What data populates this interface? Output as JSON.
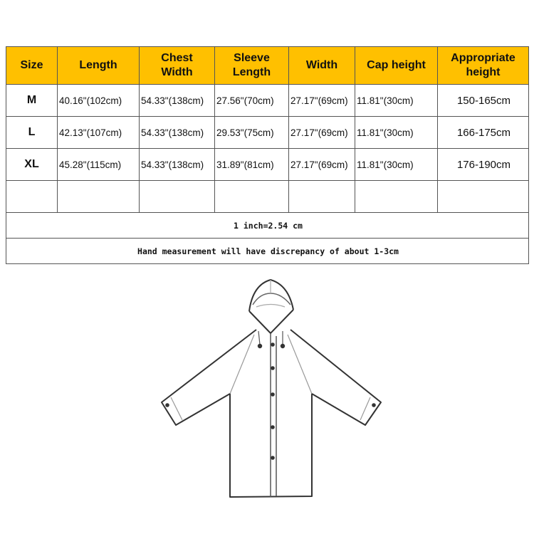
{
  "colors": {
    "header_bg": "#FFC000"
  },
  "table": {
    "headers": [
      "Size",
      "Length",
      "Chest Width",
      "Sleeve Length",
      "Width",
      "Cap height",
      "Appropriate height"
    ],
    "rows": [
      [
        "M",
        "40.16\"(102cm)",
        "54.33\"(138cm)",
        "27.56\"(70cm)",
        "27.17\"(69cm)",
        "11.81\"(30cm)",
        "150-165cm"
      ],
      [
        "L",
        "42.13\"(107cm)",
        "54.33\"(138cm)",
        "29.53\"(75cm)",
        "27.17\"(69cm)",
        "11.81\"(30cm)",
        "166-175cm"
      ],
      [
        "XL",
        "45.28\"(115cm)",
        "54.33\"(138cm)",
        "31.89\"(81cm)",
        "27.17\"(69cm)",
        "11.81\"(30cm)",
        "176-190cm"
      ]
    ],
    "conversion_note": "1 inch=2.54 cm",
    "discrepancy_note": "Hand measurement will have discrepancy of about 1-3cm"
  },
  "illustration": {
    "subject": "raincoat-icon"
  }
}
